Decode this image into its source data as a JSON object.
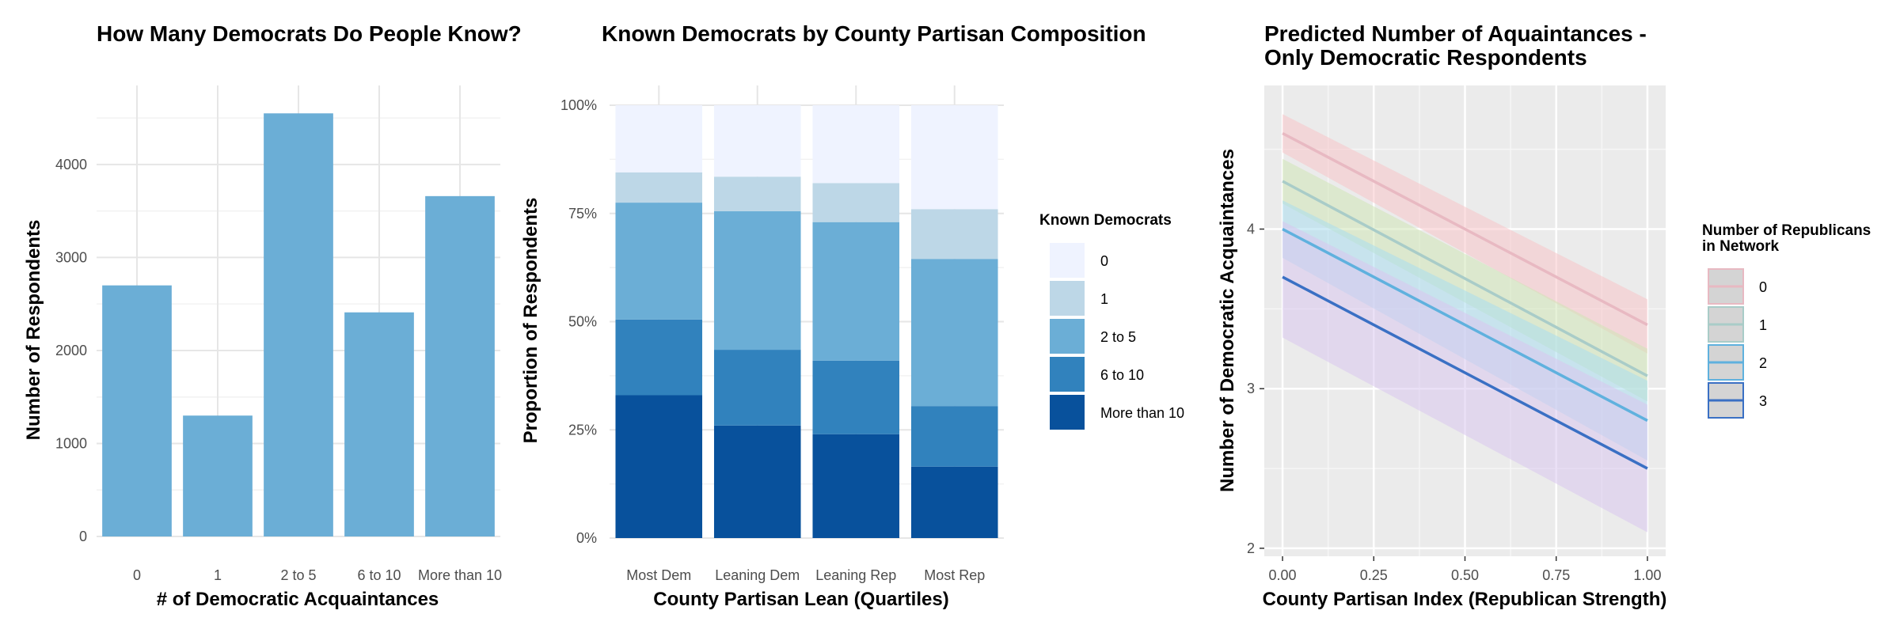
{
  "chart_data": [
    {
      "type": "bar",
      "title": "How Many Democrats Do People Know?",
      "xlabel": "# of Democratic Acquaintances",
      "ylabel": "Number of Respondents",
      "categories": [
        "0",
        "1",
        "2 to 5",
        "6 to 10",
        "More than 10"
      ],
      "values": [
        2700,
        1300,
        4550,
        2410,
        3660
      ],
      "ylim": [
        0,
        4850
      ],
      "yticks": [
        0,
        1000,
        2000,
        3000,
        4000
      ],
      "color": "#6baed6",
      "grid": true
    },
    {
      "type": "bar",
      "stacked": true,
      "title": "Known Democrats by County Partisan Composition",
      "xlabel": "County Partisan Lean (Quartiles)",
      "ylabel": "Proportion of Respondents",
      "categories": [
        "Most Dem",
        "Leaning Dem",
        "Leaning Rep",
        "Most Rep"
      ],
      "ylim": [
        0,
        1
      ],
      "yticks": [
        0,
        0.25,
        0.5,
        0.75,
        1
      ],
      "ytick_labels": [
        "0%",
        "25%",
        "50%",
        "75%",
        "100%"
      ],
      "legend_title": "Known Democrats",
      "legend_position": "right",
      "series": [
        {
          "name": "More than 10",
          "color": "#08519c",
          "values": [
            0.33,
            0.26,
            0.24,
            0.165
          ]
        },
        {
          "name": "6 to 10",
          "color": "#3182bd",
          "values": [
            0.175,
            0.175,
            0.17,
            0.14
          ]
        },
        {
          "name": "2 to 5",
          "color": "#6baed6",
          "values": [
            0.27,
            0.32,
            0.32,
            0.34
          ]
        },
        {
          "name": "1",
          "color": "#bdd7e7",
          "values": [
            0.07,
            0.08,
            0.09,
            0.115
          ]
        },
        {
          "name": "0",
          "color": "#eff3ff",
          "values": [
            0.155,
            0.165,
            0.18,
            0.24
          ]
        }
      ],
      "legend_order": [
        "0",
        "1",
        "2 to 5",
        "6 to 10",
        "More than 10"
      ],
      "grid": true
    },
    {
      "type": "line",
      "title": "Predicted Number of Aquaintances -",
      "title_line2": "Only Democratic Respondents",
      "xlabel": "County Partisan Index (Republican Strength)",
      "ylabel": "Number of Democratic Acquaintances",
      "xlim": [
        -0.05,
        1.05
      ],
      "ylim": [
        1.95,
        4.9
      ],
      "xticks": [
        0,
        0.25,
        0.5,
        0.75,
        1
      ],
      "xtick_labels": [
        "0.00",
        "0.25",
        "0.50",
        "0.75",
        "1.00"
      ],
      "yticks": [
        2,
        3,
        4
      ],
      "ytick_labels": [
        "2",
        "3",
        "4"
      ],
      "legend_title": "Number of Republicans",
      "legend_title_line2": "in Network",
      "legend_position": "right",
      "panel_background": "#ebebeb",
      "series": [
        {
          "name": "0",
          "color": "#e8b9c2",
          "band_color": "#f8c4c9",
          "x": [
            0,
            1
          ],
          "y": [
            4.6,
            3.4
          ],
          "lower": [
            4.48,
            3.22
          ],
          "upper": [
            4.72,
            3.56
          ]
        },
        {
          "name": "1",
          "color": "#a9ccc8",
          "band_color": "#cfe6b6",
          "x": [
            0,
            1
          ],
          "y": [
            4.3,
            3.08
          ],
          "lower": [
            4.16,
            2.92
          ],
          "upper": [
            4.44,
            3.25
          ]
        },
        {
          "name": "2",
          "color": "#5fb1de",
          "band_color": "#a9dcef",
          "x": [
            0,
            1
          ],
          "y": [
            4.0,
            2.8
          ],
          "lower": [
            3.82,
            2.55
          ],
          "upper": [
            4.18,
            3.05
          ]
        },
        {
          "name": "3",
          "color": "#3a70c4",
          "band_color": "#d9c6ee",
          "x": [
            0,
            1
          ],
          "y": [
            3.7,
            2.5
          ],
          "lower": [
            3.32,
            2.1
          ],
          "upper": [
            4.05,
            2.9
          ]
        }
      ],
      "grid": true
    }
  ]
}
